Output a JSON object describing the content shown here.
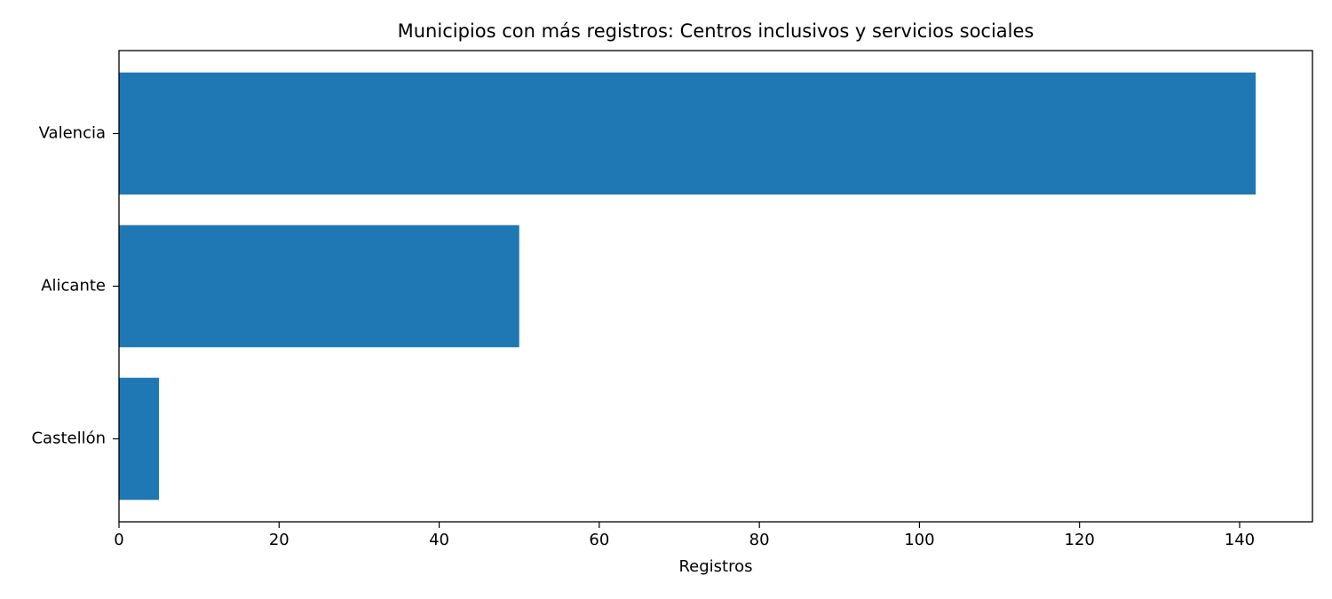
{
  "chart_data": {
    "type": "barh",
    "title": "Municipios con más registros: Centros inclusivos y servicios sociales",
    "x_label": "Registros",
    "categories": [
      "Valencia",
      "Alicante",
      "Castellón"
    ],
    "values": [
      142,
      50,
      5
    ],
    "color": "#1f77b4",
    "xlim": [
      0,
      149.1
    ],
    "xticks": [
      0,
      20,
      40,
      60,
      80,
      100,
      120,
      140
    ]
  }
}
